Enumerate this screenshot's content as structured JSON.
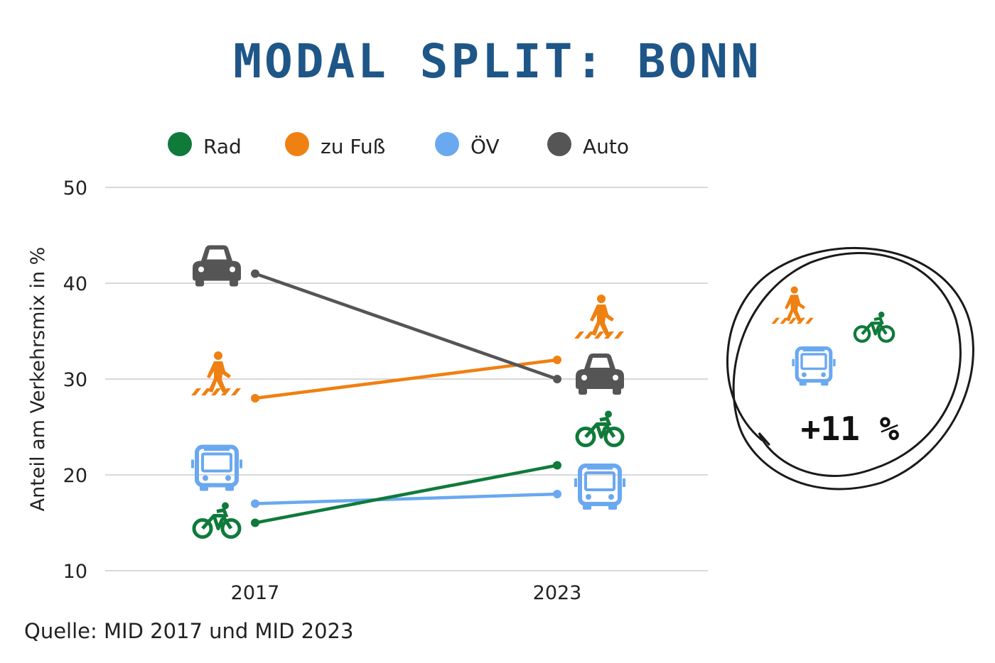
{
  "title": "MODAL SPLIT: BONN",
  "source": "Quelle: MID 2017 und MID 2023",
  "colors": {
    "Rad": "#0f7a3a",
    "zu Fuß": "#ef8012",
    "ÖV": "#6aa8f0",
    "Auto": "#555555"
  },
  "chart_data": {
    "type": "line",
    "x": [
      "2017",
      "2023"
    ],
    "series": [
      {
        "name": "Rad",
        "values": [
          15,
          21
        ],
        "icon": "bicycle-icon"
      },
      {
        "name": "zu Fuß",
        "values": [
          28,
          32
        ],
        "icon": "pedestrian-icon"
      },
      {
        "name": "ÖV",
        "values": [
          17,
          18
        ],
        "icon": "bus-icon"
      },
      {
        "name": "Auto",
        "values": [
          41,
          30
        ],
        "icon": "car-icon"
      }
    ],
    "ylabel": "Anteil am Verkehrsmix in %",
    "ylim": [
      10,
      50
    ],
    "yticks": [
      10,
      20,
      30,
      40,
      50
    ],
    "grid": true,
    "legend": "top"
  },
  "annotation": {
    "text": "+11 %",
    "icons": [
      "pedestrian-icon",
      "bicycle-icon",
      "bus-icon"
    ]
  }
}
